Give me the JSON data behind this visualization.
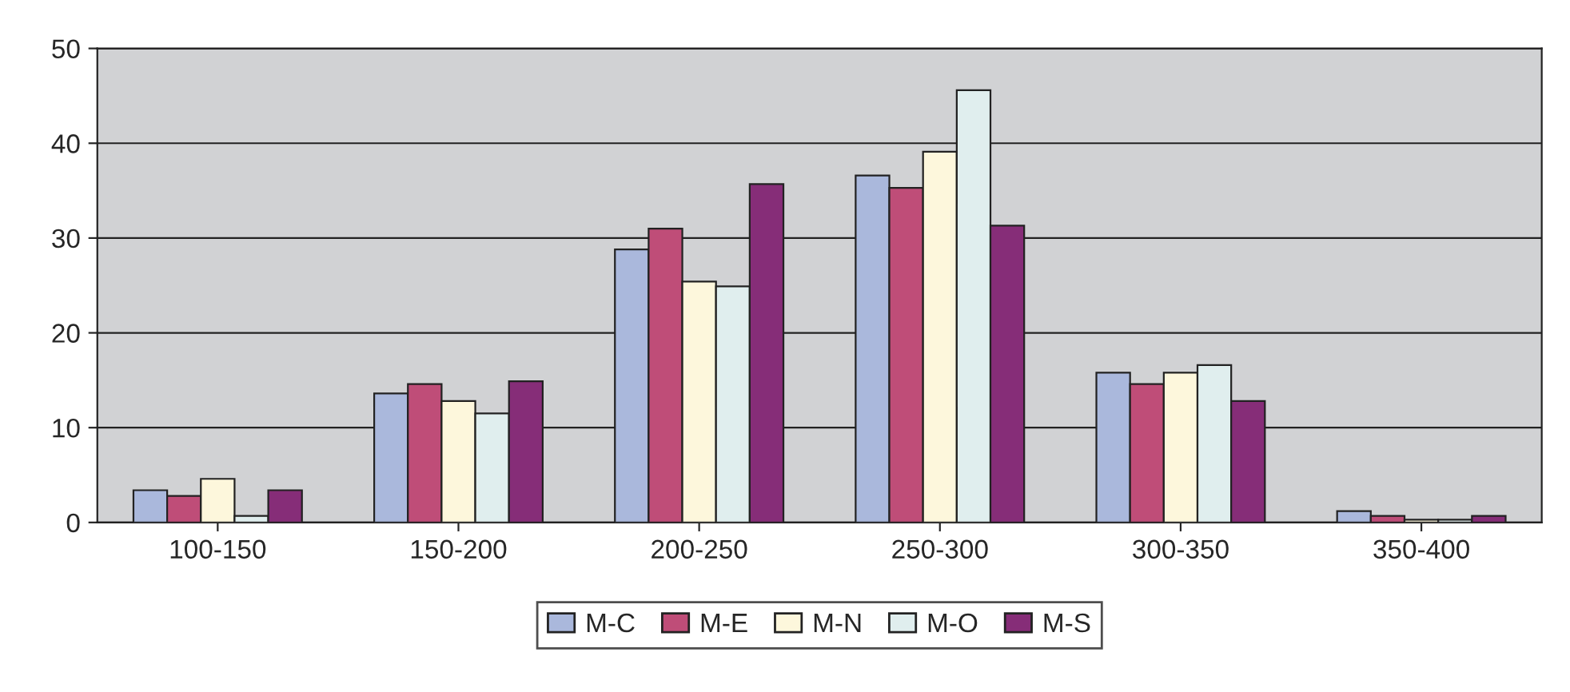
{
  "chart_data": {
    "type": "bar",
    "categories": [
      "100-150",
      "150-200",
      "200-250",
      "250-300",
      "300-350",
      "350-400"
    ],
    "series": [
      {
        "name": "M-C",
        "color": "#aab8dc",
        "values": [
          3.4,
          13.6,
          28.8,
          36.6,
          15.8,
          1.2
        ]
      },
      {
        "name": "M-E",
        "color": "#bf4d78",
        "values": [
          2.8,
          14.6,
          31.0,
          35.3,
          14.6,
          0.7
        ]
      },
      {
        "name": "M-N",
        "color": "#fdf7dc",
        "values": [
          4.6,
          12.8,
          25.4,
          39.1,
          15.8,
          0.3
        ]
      },
      {
        "name": "M-O",
        "color": "#e0eeee",
        "values": [
          0.7,
          11.5,
          24.9,
          45.6,
          16.6,
          0.3
        ]
      },
      {
        "name": "M-S",
        "color": "#862d78",
        "values": [
          3.4,
          14.9,
          35.7,
          31.3,
          12.8,
          0.7
        ]
      }
    ],
    "ylim": [
      0,
      50
    ],
    "yticks": [
      0,
      10,
      20,
      30,
      40,
      50
    ],
    "grid": "y",
    "legend": "bottom"
  }
}
